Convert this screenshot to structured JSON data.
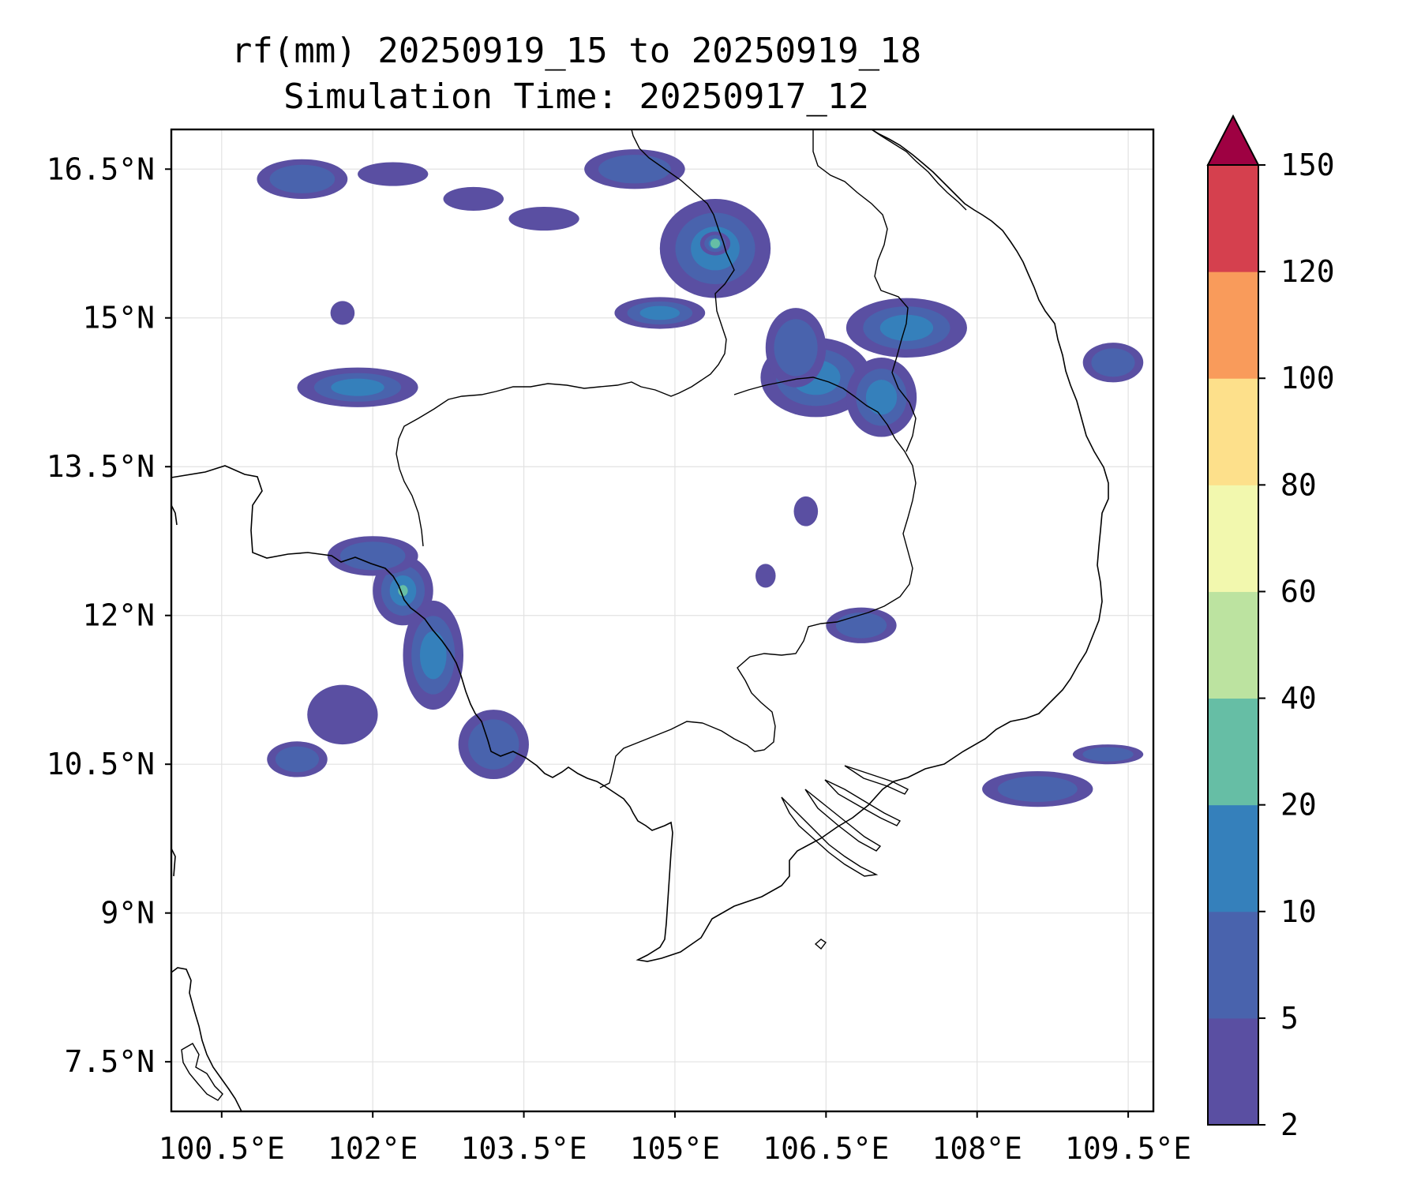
{
  "title": {
    "line1": "rf(mm) 20250919_15 to 20250919_18",
    "line2": "Simulation Time: 20250917_12"
  },
  "map": {
    "lon_range": [
      100.0,
      109.75
    ],
    "lat_range": [
      7.0,
      16.9
    ],
    "x_ticks": [
      {
        "value": 100.5,
        "label": "100.5°E"
      },
      {
        "value": 102.0,
        "label": "102°E"
      },
      {
        "value": 103.5,
        "label": "103.5°E"
      },
      {
        "value": 105.0,
        "label": "105°E"
      },
      {
        "value": 106.5,
        "label": "106.5°E"
      },
      {
        "value": 108.0,
        "label": "108°E"
      },
      {
        "value": 109.5,
        "label": "109.5°E"
      }
    ],
    "y_ticks": [
      {
        "value": 16.5,
        "label": "16.5°N"
      },
      {
        "value": 15.0,
        "label": "15°N"
      },
      {
        "value": 13.5,
        "label": "13.5°N"
      },
      {
        "value": 12.0,
        "label": "12°N"
      },
      {
        "value": 10.5,
        "label": "10.5°N"
      },
      {
        "value": 9.0,
        "label": "9°N"
      },
      {
        "value": 7.5,
        "label": "7.5°N"
      }
    ],
    "grid": true,
    "coastline_color": "#000000"
  },
  "colorbar": {
    "levels": [
      2,
      5,
      10,
      20,
      40,
      60,
      80,
      100,
      120,
      150
    ],
    "colors": [
      "#5a4fa2",
      "#4963ad",
      "#3580bb",
      "#66bea5",
      "#bce3a0",
      "#f2f8ae",
      "#fde08b",
      "#f99b5b",
      "#d5404e"
    ],
    "extend_color": "#9e0142",
    "extend": "max"
  },
  "rain_cells": [
    {
      "lon": 101.3,
      "lat": 16.4,
      "rlon": 0.45,
      "rlat": 0.2,
      "level": 1
    },
    {
      "lon": 102.2,
      "lat": 16.45,
      "rlon": 0.35,
      "rlat": 0.12,
      "level": 0
    },
    {
      "lon": 103.7,
      "lat": 16.0,
      "rlon": 0.35,
      "rlat": 0.12,
      "level": 0
    },
    {
      "lon": 103.0,
      "lat": 16.2,
      "rlon": 0.3,
      "rlat": 0.12,
      "level": 0
    },
    {
      "lon": 104.6,
      "lat": 16.5,
      "rlon": 0.5,
      "rlat": 0.2,
      "level": 1
    },
    {
      "lon": 105.4,
      "lat": 15.7,
      "rlon": 0.55,
      "rlat": 0.5,
      "level": 2
    },
    {
      "lon": 105.4,
      "lat": 15.75,
      "rlon": 0.15,
      "rlat": 0.12,
      "level": 3
    },
    {
      "lon": 104.85,
      "lat": 15.05,
      "rlon": 0.45,
      "rlat": 0.16,
      "level": 2
    },
    {
      "lon": 106.4,
      "lat": 14.4,
      "rlon": 0.55,
      "rlat": 0.4,
      "level": 2
    },
    {
      "lon": 107.3,
      "lat": 14.9,
      "rlon": 0.6,
      "rlat": 0.3,
      "level": 2
    },
    {
      "lon": 107.05,
      "lat": 14.2,
      "rlon": 0.35,
      "rlat": 0.4,
      "level": 2
    },
    {
      "lon": 106.2,
      "lat": 14.7,
      "rlon": 0.3,
      "rlat": 0.4,
      "level": 1
    },
    {
      "lon": 109.35,
      "lat": 14.55,
      "rlon": 0.3,
      "rlat": 0.2,
      "level": 1
    },
    {
      "lon": 101.85,
      "lat": 14.3,
      "rlon": 0.6,
      "rlat": 0.2,
      "level": 2
    },
    {
      "lon": 101.7,
      "lat": 15.05,
      "rlon": 0.12,
      "rlat": 0.12,
      "level": 0
    },
    {
      "lon": 102.3,
      "lat": 12.25,
      "rlon": 0.3,
      "rlat": 0.35,
      "level": 3
    },
    {
      "lon": 102.6,
      "lat": 11.6,
      "rlon": 0.3,
      "rlat": 0.55,
      "level": 2
    },
    {
      "lon": 102.0,
      "lat": 12.6,
      "rlon": 0.45,
      "rlat": 0.2,
      "level": 1
    },
    {
      "lon": 101.7,
      "lat": 11.0,
      "rlon": 0.35,
      "rlat": 0.3,
      "level": 0
    },
    {
      "lon": 101.25,
      "lat": 10.55,
      "rlon": 0.3,
      "rlat": 0.18,
      "level": 1
    },
    {
      "lon": 103.2,
      "lat": 10.7,
      "rlon": 0.35,
      "rlat": 0.35,
      "level": 1
    },
    {
      "lon": 106.85,
      "lat": 11.9,
      "rlon": 0.35,
      "rlat": 0.18,
      "level": 1
    },
    {
      "lon": 106.3,
      "lat": 13.05,
      "rlon": 0.12,
      "rlat": 0.15,
      "level": 0
    },
    {
      "lon": 105.9,
      "lat": 12.4,
      "rlon": 0.1,
      "rlat": 0.12,
      "level": 0
    },
    {
      "lon": 108.6,
      "lat": 10.25,
      "rlon": 0.55,
      "rlat": 0.18,
      "level": 1
    },
    {
      "lon": 109.3,
      "lat": 10.6,
      "rlon": 0.35,
      "rlat": 0.1,
      "level": 1
    }
  ]
}
